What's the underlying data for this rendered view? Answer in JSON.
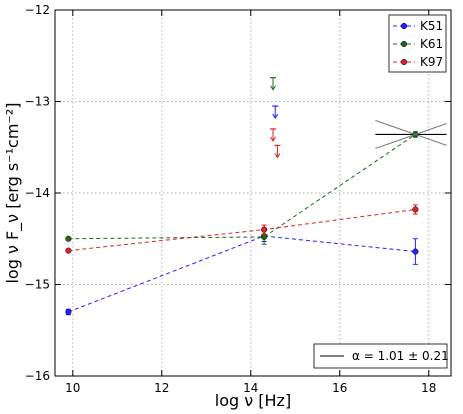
{
  "chart_data": {
    "type": "scatter",
    "xlabel": "log ν [Hz]",
    "ylabel": "log ν F_ν [erg s⁻¹cm⁻²]",
    "xlim": [
      9.6,
      18.5
    ],
    "ylim": [
      -16,
      -12
    ],
    "x_ticks": [
      10,
      12,
      14,
      16,
      18
    ],
    "y_ticks": [
      -16,
      -15,
      -14,
      -13,
      -12
    ],
    "grid": true,
    "legend_position": "top-right",
    "series": [
      {
        "name": "K51",
        "color": "#2222ff",
        "points": [
          {
            "x": 9.9,
            "y": -15.3,
            "err": 0.03
          },
          {
            "x": 14.3,
            "y": -14.47,
            "err": 0.06
          },
          {
            "x": 17.7,
            "y": -14.64,
            "err": 0.14
          }
        ],
        "upper_limits": [
          {
            "x": 14.55,
            "y": -13.05
          }
        ]
      },
      {
        "name": "K61",
        "color": "#1a6b1a",
        "points": [
          {
            "x": 9.9,
            "y": -14.5,
            "err": 0.0
          },
          {
            "x": 14.3,
            "y": -14.48,
            "err": 0.08
          },
          {
            "x": 17.7,
            "y": -13.36,
            "err": 0.03
          }
        ],
        "upper_limits": [
          {
            "x": 14.5,
            "y": -12.74
          }
        ]
      },
      {
        "name": "K97",
        "color": "#dd2222",
        "points": [
          {
            "x": 9.9,
            "y": -14.63,
            "err": 0.0
          },
          {
            "x": 14.3,
            "y": -14.4,
            "err": 0.05
          },
          {
            "x": 17.7,
            "y": -14.18,
            "err": 0.05
          }
        ],
        "upper_limits": [
          {
            "x": 14.5,
            "y": -13.3
          },
          {
            "x": 14.6,
            "y": -13.48
          }
        ]
      }
    ],
    "spectral_fit": {
      "legend_label": "α = 1.01 ± 0.21",
      "legend_position": "bottom-right",
      "color": "#000000",
      "center": {
        "x": 17.7,
        "y": -13.36
      },
      "x_range": [
        16.8,
        18.4
      ],
      "slopes": [
        0.0,
        0.17,
        -0.17
      ]
    }
  }
}
